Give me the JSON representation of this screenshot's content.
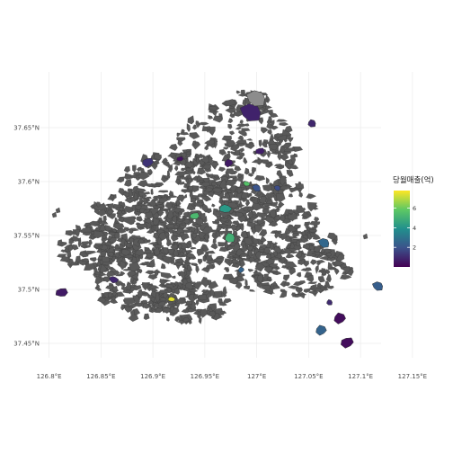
{
  "map": {
    "x_axis": {
      "ticks": [
        {
          "value": 126.8,
          "label": "126.8°E"
        },
        {
          "value": 126.85,
          "label": "126.85°E"
        },
        {
          "value": 126.9,
          "label": "126.9°E"
        },
        {
          "value": 126.95,
          "label": "126.95°E"
        },
        {
          "value": 127.0,
          "label": "127°E"
        },
        {
          "value": 127.05,
          "label": "127.05°E"
        },
        {
          "value": 127.1,
          "label": "127.1°E"
        },
        {
          "value": 127.15,
          "label": "127.15°E"
        }
      ]
    },
    "y_axis": {
      "ticks": [
        {
          "value": 37.45,
          "label": "37.45°N"
        },
        {
          "value": 37.5,
          "label": "37.5°N"
        },
        {
          "value": 37.55,
          "label": "37.55°N"
        },
        {
          "value": 37.6,
          "label": "37.6°N"
        },
        {
          "value": 37.65,
          "label": "37.65°N"
        }
      ]
    },
    "base_fill_color": "#595959",
    "na_fill_color": "#8c8c8c",
    "highlighted_areas": [
      {
        "lon": 126.995,
        "lat": 37.664,
        "value": 0.8
      },
      {
        "lon": 127.0,
        "lat": 37.677,
        "value": null
      },
      {
        "lon": 126.974,
        "lat": 37.548,
        "value": 5.0
      },
      {
        "lon": 126.985,
        "lat": 37.518,
        "value": 2.5
      },
      {
        "lon": 126.973,
        "lat": 37.617,
        "value": 0.6
      },
      {
        "lon": 126.895,
        "lat": 37.618,
        "value": 1.2
      },
      {
        "lon": 126.926,
        "lat": 37.621,
        "value": 0.4
      },
      {
        "lon": 126.94,
        "lat": 37.568,
        "value": 5.3
      },
      {
        "lon": 126.97,
        "lat": 37.575,
        "value": 4.2
      },
      {
        "lon": 126.99,
        "lat": 37.598,
        "value": 5.6
      },
      {
        "lon": 127.0,
        "lat": 37.594,
        "value": 2.0
      },
      {
        "lon": 127.065,
        "lat": 37.543,
        "value": 2.6
      },
      {
        "lon": 127.07,
        "lat": 37.488,
        "value": 1.0
      },
      {
        "lon": 127.08,
        "lat": 37.473,
        "value": 0.3
      },
      {
        "lon": 127.062,
        "lat": 37.462,
        "value": 2.5
      },
      {
        "lon": 127.087,
        "lat": 37.451,
        "value": 0.3
      },
      {
        "lon": 127.003,
        "lat": 37.628,
        "value": 0.7
      },
      {
        "lon": 126.812,
        "lat": 37.497,
        "value": 0.6
      },
      {
        "lon": 126.918,
        "lat": 37.491,
        "value": 7.5
      },
      {
        "lon": 126.862,
        "lat": 37.509,
        "value": 0.9
      },
      {
        "lon": 127.117,
        "lat": 37.503,
        "value": 2.3
      },
      {
        "lon": 127.02,
        "lat": 37.594,
        "value": 1.8
      },
      {
        "lon": 127.053,
        "lat": 37.654,
        "value": 0.9
      }
    ]
  },
  "legend": {
    "title": "당월매출(억)",
    "ticks": [
      {
        "value": 2,
        "label": "2"
      },
      {
        "value": 4,
        "label": "4"
      },
      {
        "value": 6,
        "label": "6"
      }
    ],
    "min": 0,
    "max": 7.8,
    "colors": [
      "#440154",
      "#3b528b",
      "#21908d",
      "#5dc863",
      "#fde725"
    ]
  }
}
